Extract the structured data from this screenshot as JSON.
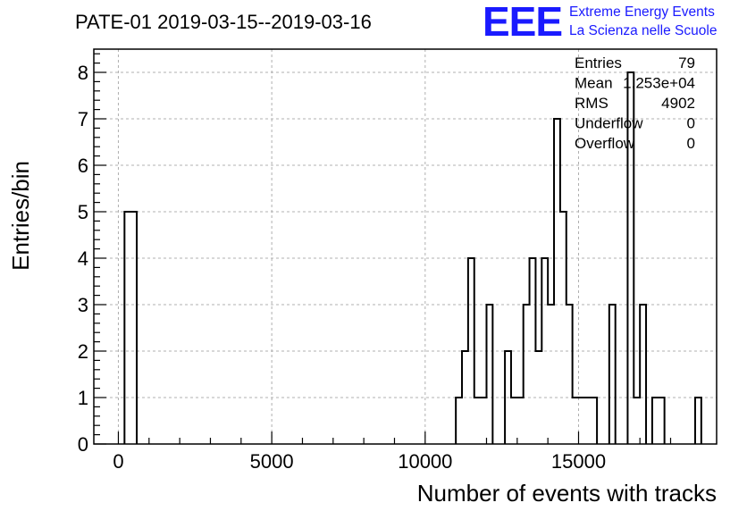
{
  "chart_data": {
    "type": "bar",
    "title": "PATE-01 2019-03-15--2019-03-16",
    "xlabel": "Number of events with tracks",
    "ylabel": "Entries/bin",
    "xlim": [
      -800,
      19500
    ],
    "ylim": [
      0,
      8.5
    ],
    "xticks": [
      0,
      5000,
      10000,
      15000
    ],
    "yticks": [
      0,
      1,
      2,
      3,
      4,
      5,
      6,
      7,
      8
    ],
    "grid": true,
    "bin_width": 200,
    "bins": [
      {
        "x0": 200,
        "value": 5
      },
      {
        "x0": 400,
        "value": 5
      },
      {
        "x0": 11000,
        "value": 1
      },
      {
        "x0": 11200,
        "value": 2
      },
      {
        "x0": 11400,
        "value": 4
      },
      {
        "x0": 11600,
        "value": 1
      },
      {
        "x0": 11800,
        "value": 1
      },
      {
        "x0": 12000,
        "value": 3
      },
      {
        "x0": 12600,
        "value": 2
      },
      {
        "x0": 12800,
        "value": 1
      },
      {
        "x0": 13000,
        "value": 1
      },
      {
        "x0": 13200,
        "value": 3
      },
      {
        "x0": 13400,
        "value": 4
      },
      {
        "x0": 13600,
        "value": 2
      },
      {
        "x0": 13800,
        "value": 4
      },
      {
        "x0": 14000,
        "value": 3
      },
      {
        "x0": 14200,
        "value": 7
      },
      {
        "x0": 14400,
        "value": 5
      },
      {
        "x0": 14600,
        "value": 3
      },
      {
        "x0": 14800,
        "value": 1
      },
      {
        "x0": 15000,
        "value": 1
      },
      {
        "x0": 15200,
        "value": 1
      },
      {
        "x0": 15400,
        "value": 1
      },
      {
        "x0": 16000,
        "value": 3
      },
      {
        "x0": 16600,
        "value": 8
      },
      {
        "x0": 16800,
        "value": 1
      },
      {
        "x0": 17000,
        "value": 3
      },
      {
        "x0": 17400,
        "value": 1
      },
      {
        "x0": 17600,
        "value": 1
      },
      {
        "x0": 18800,
        "value": 1
      }
    ],
    "stats": [
      {
        "label": "Entries",
        "value": "79"
      },
      {
        "label": "Mean",
        "value": "1.253e+04"
      },
      {
        "label": "RMS",
        "value": "4902"
      },
      {
        "label": "Underflow",
        "value": "0"
      },
      {
        "label": "Overflow",
        "value": "0"
      }
    ]
  },
  "logo": {
    "letters": "EEE",
    "line1": "Extreme Energy Events",
    "line2": "La Scienza nelle Scuole"
  },
  "colors": {
    "histogram_line": "#000000",
    "grid": "#b0b0b0",
    "logo": "#1a1aff"
  }
}
